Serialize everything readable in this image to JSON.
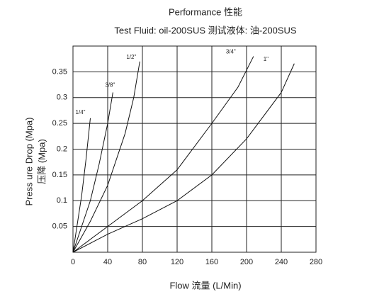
{
  "chart_data": {
    "type": "line",
    "title": "Performance 性能",
    "subtitle": "Test Fluid: oil-200SUS 测试液体:  油-200SUS",
    "x_label": "Flow 流量 (L/Min)",
    "y_label": "Press ure Drop (Mpa)",
    "y_label_2": "压降  (Mpa)",
    "xlim": [
      0,
      280
    ],
    "ylim": [
      0,
      0.4
    ],
    "xticks": [
      0,
      40,
      80,
      120,
      160,
      200,
      240,
      280
    ],
    "yticks": [
      0.05,
      0.1,
      0.15,
      0.2,
      0.25,
      0.3,
      0.35
    ],
    "grid": true,
    "series": [
      {
        "name": "1/4\"",
        "color": "#111111",
        "x": [
          0,
          10,
          15,
          20
        ],
        "values": [
          0,
          0.11,
          0.18,
          0.26
        ]
      },
      {
        "name": "3/8\"",
        "color": "#111111",
        "x": [
          0,
          20,
          30,
          40,
          46
        ],
        "values": [
          0,
          0.1,
          0.17,
          0.25,
          0.31
        ]
      },
      {
        "name": "1/2\"",
        "color": "#111111",
        "x": [
          0,
          20,
          40,
          60,
          70,
          77
        ],
        "values": [
          0,
          0.06,
          0.13,
          0.23,
          0.3,
          0.37
        ]
      },
      {
        "name": "3/4\"",
        "color": "#111111",
        "x": [
          0,
          40,
          80,
          120,
          160,
          190,
          208
        ],
        "values": [
          0,
          0.05,
          0.1,
          0.16,
          0.25,
          0.32,
          0.38
        ]
      },
      {
        "name": "1\"",
        "color": "#111111",
        "x": [
          0,
          40,
          80,
          120,
          160,
          200,
          240,
          255
        ],
        "values": [
          0,
          0.035,
          0.065,
          0.1,
          0.15,
          0.22,
          0.31,
          0.366
        ]
      }
    ]
  }
}
